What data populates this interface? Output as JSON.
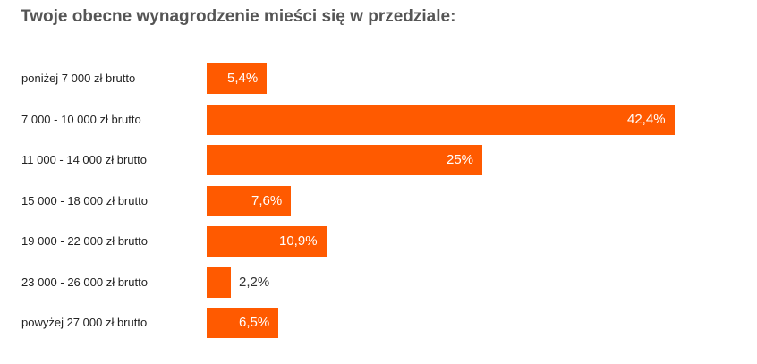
{
  "chart_data": {
    "type": "bar",
    "orientation": "horizontal",
    "title": "Twoje obecne wynagrodzenie mieści się w przedziale:",
    "categories": [
      "poniżej 7 000 zł brutto",
      "7 000 - 10 000 zł brutto",
      "11 000 - 14 000 zł brutto",
      "15 000 - 18 000 zł brutto",
      "19 000 - 22 000 zł brutto",
      "23 000 - 26 000 zł brutto",
      "powyżej 27 000 zł brutto"
    ],
    "values": [
      5.4,
      42.4,
      25,
      7.6,
      10.9,
      2.2,
      6.5
    ],
    "value_labels": [
      "5,4%",
      "42,4%",
      "25%",
      "7,6%",
      "10,9%",
      "2,2%",
      "6,5%"
    ],
    "xlim": [
      0,
      42.4
    ],
    "bar_color": "#ff5a00",
    "grid": false,
    "legend": "none"
  }
}
